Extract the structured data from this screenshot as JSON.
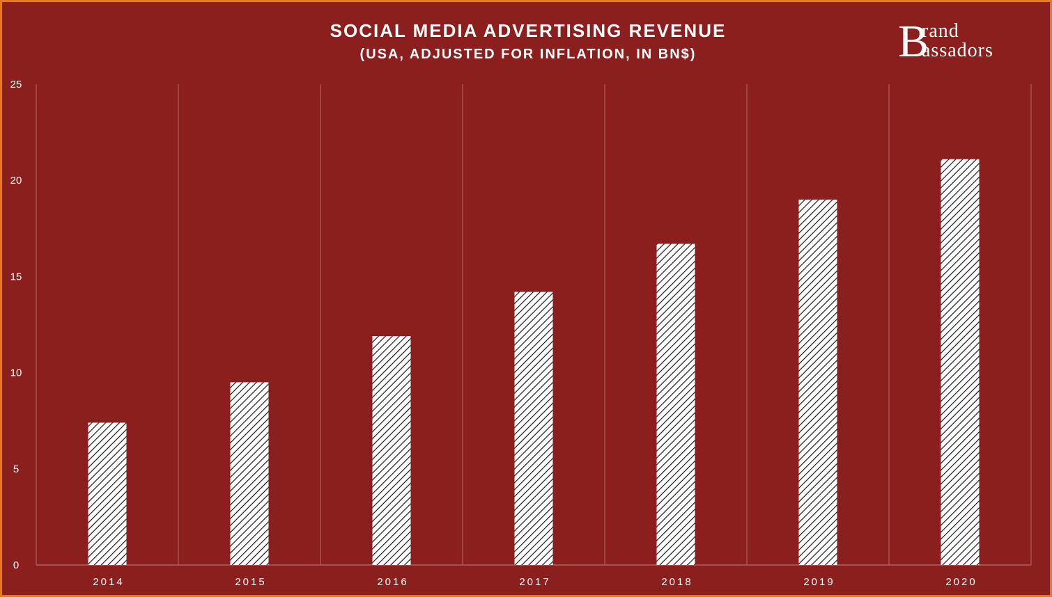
{
  "chart_data": {
    "type": "bar",
    "title": "SOCIAL MEDIA ADVERTISING REVENUE",
    "subtitle": "(USA, ADJUSTED FOR INFLATION, IN BN$)",
    "categories": [
      "2014",
      "2015",
      "2016",
      "2017",
      "2018",
      "2019",
      "2020"
    ],
    "values": [
      7.4,
      9.5,
      11.9,
      14.2,
      16.7,
      19.0,
      21.1
    ],
    "ylim": [
      0,
      25
    ],
    "yticks": [
      "0",
      "5",
      "10",
      "15",
      "20",
      "25"
    ],
    "xlabel": "",
    "ylabel": "",
    "grid": "vertical separators between categories",
    "bar_fill": "white diagonal hatch"
  },
  "logo": {
    "big_letter": "B",
    "line1": "rand",
    "line2": "assadors"
  },
  "colors": {
    "background": "#8B1F1E",
    "border": "#E87722",
    "text": "#FFFFFF",
    "gridline": "#B06060"
  }
}
